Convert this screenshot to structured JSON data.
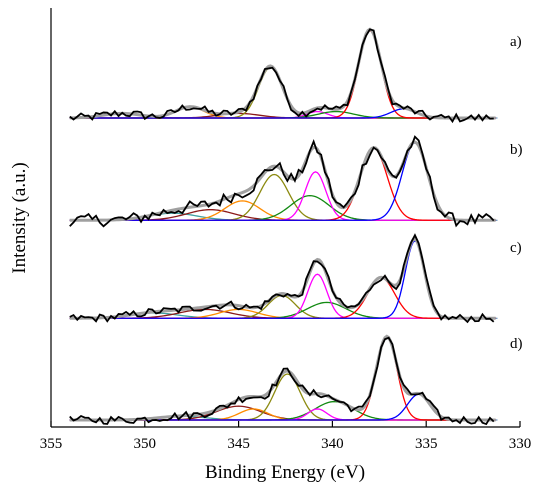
{
  "chart_data": {
    "type": "line",
    "xlabel": "Binding Energy (eV)",
    "ylabel": "Intensity (a.u.)",
    "xlim": [
      355,
      330
    ],
    "x_reversed": true,
    "xticks": [
      355,
      350,
      345,
      340,
      335,
      330
    ],
    "yticks": "none",
    "grid": false,
    "component_colors": {
      "brown": "#8b1a1a",
      "orange": "#ff8c00",
      "olive": "#8c8a10",
      "magenta": "#ff00ff",
      "green": "#138a13",
      "red": "#ff0000",
      "blue": "#0000ff",
      "teal": "#40a0a0",
      "envelope": "#a0a0a0",
      "data": "#000000"
    },
    "panels": [
      {
        "label": "a)",
        "components": [
          {
            "color": "brown",
            "center": 351.2,
            "fwhm": 2.4,
            "height": 0.05
          },
          {
            "color": "orange",
            "center": 347.6,
            "fwhm": 1.8,
            "height": 0.12
          },
          {
            "color": "brown",
            "center": 345.0,
            "fwhm": 2.6,
            "height": 0.05
          },
          {
            "color": "olive",
            "center": 343.3,
            "fwhm": 1.5,
            "height": 0.55
          },
          {
            "color": "magenta",
            "center": 340.8,
            "fwhm": 1.3,
            "height": 0.07
          },
          {
            "color": "green",
            "center": 339.8,
            "fwhm": 2.2,
            "height": 0.07
          },
          {
            "color": "red",
            "center": 338.0,
            "fwhm": 1.4,
            "height": 0.95
          },
          {
            "color": "blue",
            "center": 336.2,
            "fwhm": 1.6,
            "height": 0.1
          }
        ]
      },
      {
        "label": "b)",
        "components": [
          {
            "color": "teal",
            "center": 348.5,
            "fwhm": 3.0,
            "height": 0.08
          },
          {
            "color": "brown",
            "center": 346.5,
            "fwhm": 3.0,
            "height": 0.12
          },
          {
            "color": "orange",
            "center": 344.8,
            "fwhm": 2.2,
            "height": 0.22
          },
          {
            "color": "olive",
            "center": 343.1,
            "fwhm": 1.8,
            "height": 0.52
          },
          {
            "color": "green",
            "center": 341.2,
            "fwhm": 2.4,
            "height": 0.28
          },
          {
            "color": "magenta",
            "center": 340.9,
            "fwhm": 1.3,
            "height": 0.55
          },
          {
            "color": "red",
            "center": 337.8,
            "fwhm": 1.7,
            "height": 0.82
          },
          {
            "color": "blue",
            "center": 335.6,
            "fwhm": 1.6,
            "height": 0.88
          }
        ]
      },
      {
        "label": "c)",
        "components": [
          {
            "color": "teal",
            "center": 349.5,
            "fwhm": 3.0,
            "height": 0.06
          },
          {
            "color": "brown",
            "center": 346.8,
            "fwhm": 3.2,
            "height": 0.1
          },
          {
            "color": "orange",
            "center": 345.0,
            "fwhm": 2.4,
            "height": 0.1
          },
          {
            "color": "olive",
            "center": 342.7,
            "fwhm": 1.7,
            "height": 0.26
          },
          {
            "color": "green",
            "center": 340.3,
            "fwhm": 2.4,
            "height": 0.18
          },
          {
            "color": "magenta",
            "center": 340.8,
            "fwhm": 1.2,
            "height": 0.5
          },
          {
            "color": "red",
            "center": 337.4,
            "fwhm": 1.7,
            "height": 0.46
          },
          {
            "color": "blue",
            "center": 335.6,
            "fwhm": 1.2,
            "height": 0.88
          }
        ]
      },
      {
        "label": "d)",
        "components": [
          {
            "color": "teal",
            "center": 348.0,
            "fwhm": 3.0,
            "height": 0.04
          },
          {
            "color": "brown",
            "center": 345.0,
            "fwhm": 2.8,
            "height": 0.15
          },
          {
            "color": "orange",
            "center": 344.2,
            "fwhm": 1.8,
            "height": 0.12
          },
          {
            "color": "olive",
            "center": 342.4,
            "fwhm": 1.6,
            "height": 0.5
          },
          {
            "color": "green",
            "center": 339.9,
            "fwhm": 2.4,
            "height": 0.2
          },
          {
            "color": "magenta",
            "center": 340.8,
            "fwhm": 1.2,
            "height": 0.12
          },
          {
            "color": "red",
            "center": 337.1,
            "fwhm": 1.3,
            "height": 0.9
          },
          {
            "color": "blue",
            "center": 335.4,
            "fwhm": 1.4,
            "height": 0.28
          }
        ]
      }
    ]
  }
}
